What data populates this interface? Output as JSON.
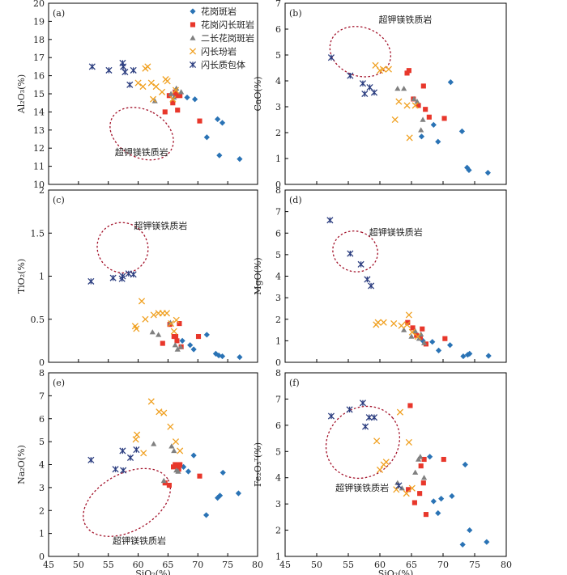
{
  "colors": {
    "granite_porphyry": "#2a73b5",
    "granodiorite_porphyry": "#e8372b",
    "monzogranite_porphyry": "#808080",
    "diorite_porphyrite": "#f0a020",
    "dioritic_enclave": "#2c3e80",
    "ultrapotassic_ellipse": "#a3122a"
  },
  "legend": [
    {
      "key": "granite_porphyry",
      "label": "花岗斑岩",
      "marker": "diamond"
    },
    {
      "key": "granodiorite_porphyry",
      "label": "花岗闪长斑岩",
      "marker": "square"
    },
    {
      "key": "monzogranite_porphyry",
      "label": "二长花岗斑岩",
      "marker": "triangle"
    },
    {
      "key": "diorite_porphyrite",
      "label": "闪长玢岩",
      "marker": "x"
    },
    {
      "key": "dioritic_enclave",
      "label": "闪长质包体",
      "marker": "star"
    }
  ],
  "annotation_label": "超钾镁铁质岩",
  "chart_data": [
    {
      "type": "scatter",
      "panel": "(a)",
      "xlabel": "SiO₂(%)",
      "ylabel": "Al₂O₃(%)",
      "xlim": [
        45,
        80
      ],
      "ylim": [
        10,
        20
      ],
      "yticks": [
        10,
        11,
        12,
        13,
        14,
        15,
        16,
        17,
        18,
        19,
        20
      ],
      "ytick_format": 0,
      "show_xlabel": false,
      "show_xticklabels": false,
      "legend": true,
      "series": [
        {
          "key": "granite_porphyry",
          "x": [
            68.2,
            69.5,
            71.5,
            73.3,
            73.6,
            74.1,
            77.0
          ],
          "y": [
            14.8,
            14.7,
            12.6,
            13.6,
            11.6,
            13.4,
            11.4
          ]
        },
        {
          "key": "granodiorite_porphyry",
          "x": [
            64.5,
            65.2,
            65.8,
            66.3,
            66.6,
            67.0,
            70.3,
            66.2
          ],
          "y": [
            14.0,
            14.9,
            14.5,
            14.9,
            14.1,
            14.9,
            13.5,
            15.1
          ]
        },
        {
          "key": "monzogranite_porphyry",
          "x": [
            62.8,
            65.5,
            66.0,
            66.4,
            67.2
          ],
          "y": [
            14.6,
            15.0,
            14.8,
            15.3,
            15.1
          ]
        },
        {
          "key": "diorite_porphyrite",
          "x": [
            60.0,
            61.2,
            61.6,
            62.2,
            63.0,
            64.0,
            64.6,
            64.9,
            65.8,
            66.3,
            60.8,
            62.5
          ],
          "y": [
            15.6,
            16.4,
            16.5,
            15.6,
            15.4,
            15.1,
            15.8,
            15.7,
            14.7,
            15.2,
            15.4,
            14.7
          ]
        },
        {
          "key": "dioritic_enclave",
          "x": [
            52.3,
            55.1,
            57.4,
            57.5,
            58.6,
            59.2,
            57.8
          ],
          "y": [
            16.5,
            16.3,
            16.7,
            16.5,
            15.5,
            16.3,
            16.2
          ]
        }
      ],
      "ellipse": {
        "cx": 60.6,
        "cy": 12.8,
        "rx": 4.0,
        "ry": 1.85,
        "angle_deg": -62
      },
      "annotation": {
        "x": 56.1,
        "y": 11.6,
        "anchor": "start"
      }
    },
    {
      "type": "scatter",
      "panel": "(b)",
      "xlabel": "SiO₂(%)",
      "ylabel": "CaO(%)",
      "xlim": [
        45,
        80
      ],
      "ylim": [
        0,
        7
      ],
      "yticks": [
        0,
        1,
        2,
        3,
        4,
        5,
        6,
        7
      ],
      "ytick_format": 0,
      "show_xlabel": false,
      "show_xticklabels": false,
      "legend": false,
      "series": [
        {
          "key": "granite_porphyry",
          "x": [
            66.6,
            68.5,
            69.2,
            71.2,
            73.0,
            73.8,
            74.1,
            77.1
          ],
          "y": [
            1.85,
            2.3,
            1.65,
            3.95,
            2.05,
            0.65,
            0.55,
            0.45
          ]
        },
        {
          "key": "granodiorite_porphyry",
          "x": [
            64.3,
            64.6,
            65.3,
            66.1,
            66.9,
            67.2,
            67.8,
            70.2
          ],
          "y": [
            4.3,
            4.4,
            3.3,
            3.05,
            3.8,
            2.9,
            2.6,
            2.55
          ]
        },
        {
          "key": "monzogranite_porphyry",
          "x": [
            62.8,
            63.8,
            65.4,
            65.9,
            66.5,
            66.8
          ],
          "y": [
            3.7,
            3.7,
            3.3,
            3.2,
            2.1,
            2.5
          ]
        },
        {
          "key": "diorite_porphyrite",
          "x": [
            59.3,
            60.0,
            60.5,
            61.4,
            62.4,
            63.0,
            64.3,
            64.7,
            65.6
          ],
          "y": [
            4.6,
            4.4,
            4.45,
            4.45,
            2.5,
            3.2,
            3.05,
            1.8,
            3.05
          ]
        },
        {
          "key": "dioritic_enclave",
          "x": [
            52.3,
            55.3,
            57.3,
            58.4,
            59.1,
            57.6
          ],
          "y": [
            4.9,
            4.2,
            3.9,
            3.75,
            3.55,
            3.5
          ]
        }
      ],
      "ellipse": {
        "cx": 56.9,
        "cy": 5.13,
        "rx": 3.85,
        "ry": 1.2,
        "angle_deg": -70
      },
      "annotation": {
        "x": 59.8,
        "y": 6.25,
        "anchor": "start"
      }
    },
    {
      "type": "scatter",
      "panel": "(c)",
      "xlabel": "SiO₂(%)",
      "ylabel": "TiO₂(%)",
      "xlim": [
        45,
        80
      ],
      "ylim": [
        0,
        2
      ],
      "yticks": [
        0,
        0.5,
        1,
        1.5,
        2
      ],
      "ytick_format": 1,
      "show_xlabel": false,
      "show_xticklabels": false,
      "legend": false,
      "series": [
        {
          "key": "granite_porphyry",
          "x": [
            67.4,
            68.7,
            69.3,
            71.5,
            73.0,
            73.5,
            74.1,
            77.0
          ],
          "y": [
            0.25,
            0.2,
            0.15,
            0.32,
            0.1,
            0.08,
            0.07,
            0.06
          ]
        },
        {
          "key": "granodiorite_porphyry",
          "x": [
            64.1,
            65.3,
            66.0,
            66.3,
            66.9,
            67.2,
            70.1,
            66.5
          ],
          "y": [
            0.22,
            0.44,
            0.3,
            0.3,
            0.45,
            0.18,
            0.3,
            0.25
          ]
        },
        {
          "key": "monzogranite_porphyry",
          "x": [
            62.4,
            63.4,
            65.4,
            66.2,
            66.6,
            67.1
          ],
          "y": [
            0.35,
            0.32,
            0.46,
            0.2,
            0.15,
            0.18
          ]
        },
        {
          "key": "diorite_porphyrite",
          "x": [
            59.5,
            59.7,
            60.6,
            61.2,
            62.6,
            63.4,
            64.1,
            64.8,
            65.5,
            66.0,
            66.4
          ],
          "y": [
            0.42,
            0.39,
            0.71,
            0.5,
            0.55,
            0.57,
            0.57,
            0.57,
            0.45,
            0.36,
            0.49
          ]
        },
        {
          "key": "dioritic_enclave",
          "x": [
            52.1,
            55.8,
            57.3,
            57.4,
            58.4,
            59.2
          ],
          "y": [
            0.94,
            0.98,
            0.97,
            1.0,
            1.03,
            1.02
          ]
        }
      ],
      "ellipse": {
        "cx": 57.4,
        "cy": 1.33,
        "rx": 4.15,
        "ry": 0.3,
        "angle_deg": -50
      },
      "annotation": {
        "x": 59.3,
        "y": 1.55,
        "anchor": "start"
      }
    },
    {
      "type": "scatter",
      "panel": "(d)",
      "xlabel": "SiO₂(%)",
      "ylabel": "MgO(%)",
      "xlim": [
        45,
        80
      ],
      "ylim": [
        0,
        8
      ],
      "yticks": [
        0,
        1,
        2,
        3,
        4,
        5,
        6,
        7,
        8
      ],
      "ytick_format": 0,
      "show_xlabel": false,
      "show_xticklabels": false,
      "legend": false,
      "series": [
        {
          "key": "granite_porphyry",
          "x": [
            66.8,
            68.3,
            69.3,
            71.1,
            73.2,
            73.9,
            74.2,
            77.2
          ],
          "y": [
            1.0,
            0.95,
            0.55,
            0.8,
            0.28,
            0.35,
            0.4,
            0.3
          ]
        },
        {
          "key": "granodiorite_porphyry",
          "x": [
            64.4,
            65.2,
            65.8,
            66.4,
            66.7,
            67.3,
            70.3
          ],
          "y": [
            1.85,
            1.6,
            1.25,
            1.15,
            1.55,
            0.85,
            1.1
          ]
        },
        {
          "key": "monzogranite_porphyry",
          "x": [
            63.8,
            65.0,
            65.6,
            66.2,
            66.5,
            67.0
          ],
          "y": [
            1.5,
            1.2,
            1.45,
            1.1,
            1.3,
            0.9
          ]
        },
        {
          "key": "diorite_porphyrite",
          "x": [
            59.4,
            59.7,
            60.6,
            62.2,
            63.4,
            64.3,
            64.6,
            65.1,
            66.0
          ],
          "y": [
            1.75,
            1.85,
            1.85,
            1.8,
            1.7,
            1.75,
            2.2,
            1.4,
            1.2
          ]
        },
        {
          "key": "dioritic_enclave",
          "x": [
            52.1,
            55.3,
            57.0,
            58.0,
            58.6
          ],
          "y": [
            6.6,
            5.05,
            4.55,
            3.85,
            3.55
          ]
        }
      ],
      "ellipse": {
        "cx": 56.1,
        "cy": 5.15,
        "rx": 3.2,
        "ry": 1.05,
        "angle_deg": -73
      },
      "annotation": {
        "x": 58.3,
        "y": 5.9,
        "anchor": "start"
      }
    },
    {
      "type": "scatter",
      "panel": "(e)",
      "xlabel": "SiO₂(%)",
      "ylabel": "Na₂O(%)",
      "xlim": [
        45,
        80
      ],
      "ylim": [
        0,
        8
      ],
      "yticks": [
        0,
        1,
        2,
        3,
        4,
        5,
        6,
        7,
        8
      ],
      "ytick_format": 0,
      "show_xlabel": true,
      "show_xticklabels": true,
      "legend": false,
      "series": [
        {
          "key": "granite_porphyry",
          "x": [
            67.6,
            68.4,
            69.3,
            71.4,
            73.3,
            73.7,
            74.2,
            76.8
          ],
          "y": [
            3.9,
            3.7,
            4.4,
            1.8,
            2.55,
            2.65,
            3.65,
            2.75
          ]
        },
        {
          "key": "granodiorite_porphyry",
          "x": [
            64.5,
            65.2,
            65.9,
            66.2,
            66.5,
            67.0,
            66.8,
            70.3
          ],
          "y": [
            3.2,
            3.1,
            3.9,
            4.0,
            3.95,
            4.0,
            3.8,
            3.5
          ]
        },
        {
          "key": "monzogranite_porphyry",
          "x": [
            62.6,
            64.3,
            65.6,
            66.0,
            66.4,
            66.7
          ],
          "y": [
            4.9,
            3.3,
            4.8,
            4.6,
            3.75,
            3.7
          ]
        },
        {
          "key": "diorite_porphyrite",
          "x": [
            59.6,
            59.8,
            60.9,
            62.2,
            63.5,
            64.3,
            65.4,
            66.3,
            67.0
          ],
          "y": [
            5.1,
            5.3,
            4.5,
            6.75,
            6.3,
            6.25,
            5.65,
            5.0,
            4.6
          ]
        },
        {
          "key": "dioritic_enclave",
          "x": [
            52.1,
            56.2,
            57.4,
            58.7,
            59.7,
            57.5
          ],
          "y": [
            4.2,
            3.8,
            4.6,
            4.3,
            4.65,
            3.75
          ]
        }
      ],
      "ellipse": {
        "cx": 58.1,
        "cy": 2.35,
        "rx": 7.9,
        "ry": 1.25,
        "angle_deg": -29
      },
      "annotation": {
        "x": 60.2,
        "y": 0.55,
        "anchor": "middle"
      }
    },
    {
      "type": "scatter",
      "panel": "(f)",
      "xlabel": "SiO₂(%)",
      "ylabel": "Fe₂O₃ᵀ(%)",
      "xlim": [
        45,
        80
      ],
      "ylim": [
        1,
        8
      ],
      "yticks": [
        1,
        2,
        3,
        4,
        5,
        6,
        7,
        8
      ],
      "ytick_format": 0,
      "show_xlabel": true,
      "show_xticklabels": true,
      "legend": false,
      "series": [
        {
          "key": "granite_porphyry",
          "x": [
            67.9,
            68.5,
            69.2,
            69.7,
            71.4,
            73.1,
            73.5,
            74.2,
            76.9
          ],
          "y": [
            4.8,
            3.1,
            2.65,
            3.2,
            3.3,
            1.45,
            4.5,
            2.0,
            1.55
          ]
        },
        {
          "key": "granodiorite_porphyry",
          "x": [
            64.5,
            64.8,
            65.5,
            66.3,
            66.5,
            67.0,
            67.3,
            70.1,
            66.9
          ],
          "y": [
            3.55,
            6.75,
            3.05,
            3.4,
            4.45,
            4.7,
            2.6,
            4.7,
            3.8
          ]
        },
        {
          "key": "monzogranite_porphyry",
          "x": [
            62.8,
            63.5,
            65.6,
            66.1,
            66.4,
            67.0
          ],
          "y": [
            3.8,
            3.6,
            4.2,
            4.7,
            4.8,
            4.0
          ]
        },
        {
          "key": "diorite_porphyrite",
          "x": [
            59.5,
            60.0,
            60.6,
            61.0,
            62.6,
            63.2,
            64.2,
            64.6,
            65.1
          ],
          "y": [
            5.4,
            4.3,
            4.5,
            4.6,
            3.55,
            6.5,
            3.4,
            5.35,
            3.6
          ]
        },
        {
          "key": "dioritic_enclave",
          "x": [
            52.3,
            55.2,
            57.3,
            57.7,
            58.3,
            59.1,
            63.0
          ],
          "y": [
            6.35,
            6.6,
            6.85,
            5.95,
            6.3,
            6.3,
            3.7
          ]
        }
      ],
      "ellipse": {
        "cx": 57.3,
        "cy": 5.35,
        "rx": 6.1,
        "ry": 1.3,
        "angle_deg": -40
      },
      "annotation": {
        "x": 57.2,
        "y": 3.5,
        "anchor": "middle"
      }
    }
  ]
}
